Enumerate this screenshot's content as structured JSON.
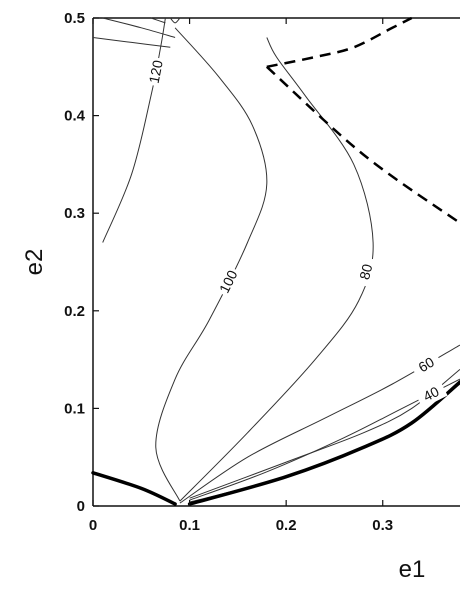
{
  "chart_data": {
    "type": "contour",
    "xlabel": "e1",
    "ylabel": "e2",
    "xlim": [
      0,
      0.38
    ],
    "ylim": [
      0,
      0.5
    ],
    "x_ticks": [
      "0",
      "0.1",
      "0.2",
      "0.3"
    ],
    "y_ticks": [
      "0",
      "0.1",
      "0.2",
      "0.3",
      "0.4",
      "0.5"
    ],
    "contours": [
      {
        "level": "120",
        "points": [
          [
            0.01,
            0.27
          ],
          [
            0.04,
            0.34
          ],
          [
            0.06,
            0.42
          ],
          [
            0.07,
            0.47
          ],
          [
            0.075,
            0.5
          ]
        ]
      },
      {
        "level": "100",
        "points": [
          [
            0.09,
            0.005
          ],
          [
            0.065,
            0.06
          ],
          [
            0.085,
            0.13
          ],
          [
            0.12,
            0.19
          ],
          [
            0.16,
            0.27
          ],
          [
            0.18,
            0.33
          ],
          [
            0.165,
            0.39
          ],
          [
            0.13,
            0.44
          ],
          [
            0.085,
            0.49
          ]
        ]
      },
      {
        "level": "80",
        "points": [
          [
            0.09,
            0.005
          ],
          [
            0.16,
            0.075
          ],
          [
            0.23,
            0.15
          ],
          [
            0.275,
            0.21
          ],
          [
            0.29,
            0.27
          ],
          [
            0.27,
            0.35
          ],
          [
            0.22,
            0.42
          ],
          [
            0.19,
            0.46
          ],
          [
            0.18,
            0.48
          ]
        ]
      },
      {
        "level": "60",
        "points": [
          [
            0.09,
            0.003
          ],
          [
            0.16,
            0.05
          ],
          [
            0.24,
            0.09
          ],
          [
            0.31,
            0.125
          ],
          [
            0.38,
            0.165
          ]
        ]
      },
      {
        "level": "40",
        "points": [
          [
            0.1,
            0.006
          ],
          [
            0.18,
            0.035
          ],
          [
            0.26,
            0.07
          ],
          [
            0.32,
            0.1
          ],
          [
            0.38,
            0.13
          ]
        ]
      },
      {
        "level": "",
        "points": [
          [
            0.1,
            0.008
          ],
          [
            0.2,
            0.045
          ],
          [
            0.28,
            0.075
          ],
          [
            0.33,
            0.1
          ],
          [
            0.38,
            0.14
          ]
        ]
      },
      {
        "level": "",
        "points": [
          [
            0.1,
            0.004
          ],
          [
            0.2,
            0.03
          ],
          [
            0.28,
            0.06
          ],
          [
            0.33,
            0.085
          ],
          [
            0.38,
            0.125
          ]
        ]
      },
      {
        "level": "",
        "points": [
          [
            0.085,
            0.48
          ],
          [
            0.05,
            0.49
          ],
          [
            0.01,
            0.5
          ]
        ]
      },
      {
        "level": "",
        "points": [
          [
            0.08,
            0.47
          ],
          [
            0.04,
            0.475
          ],
          [
            0.0,
            0.48
          ]
        ]
      },
      {
        "level": "",
        "points": [
          [
            0.075,
            0.495
          ],
          [
            0.06,
            0.5
          ]
        ]
      },
      {
        "level": "",
        "points": [
          [
            0.08,
            0.5
          ],
          [
            0.085,
            0.495
          ],
          [
            0.09,
            0.5
          ]
        ]
      }
    ],
    "boundary_solid": [
      {
        "points": [
          [
            0.0,
            0.034
          ],
          [
            0.05,
            0.018
          ],
          [
            0.085,
            0.002
          ]
        ]
      },
      {
        "points": [
          [
            0.1,
            0.002
          ],
          [
            0.2,
            0.03
          ],
          [
            0.28,
            0.06
          ],
          [
            0.33,
            0.085
          ],
          [
            0.38,
            0.127
          ]
        ]
      }
    ],
    "boundary_dashed": [
      {
        "points": [
          [
            0.18,
            0.45
          ],
          [
            0.23,
            0.46
          ],
          [
            0.27,
            0.47
          ],
          [
            0.31,
            0.49
          ],
          [
            0.33,
            0.5
          ]
        ]
      },
      {
        "points": [
          [
            0.18,
            0.45
          ],
          [
            0.28,
            0.36
          ],
          [
            0.38,
            0.29
          ]
        ]
      }
    ],
    "grid": false
  }
}
